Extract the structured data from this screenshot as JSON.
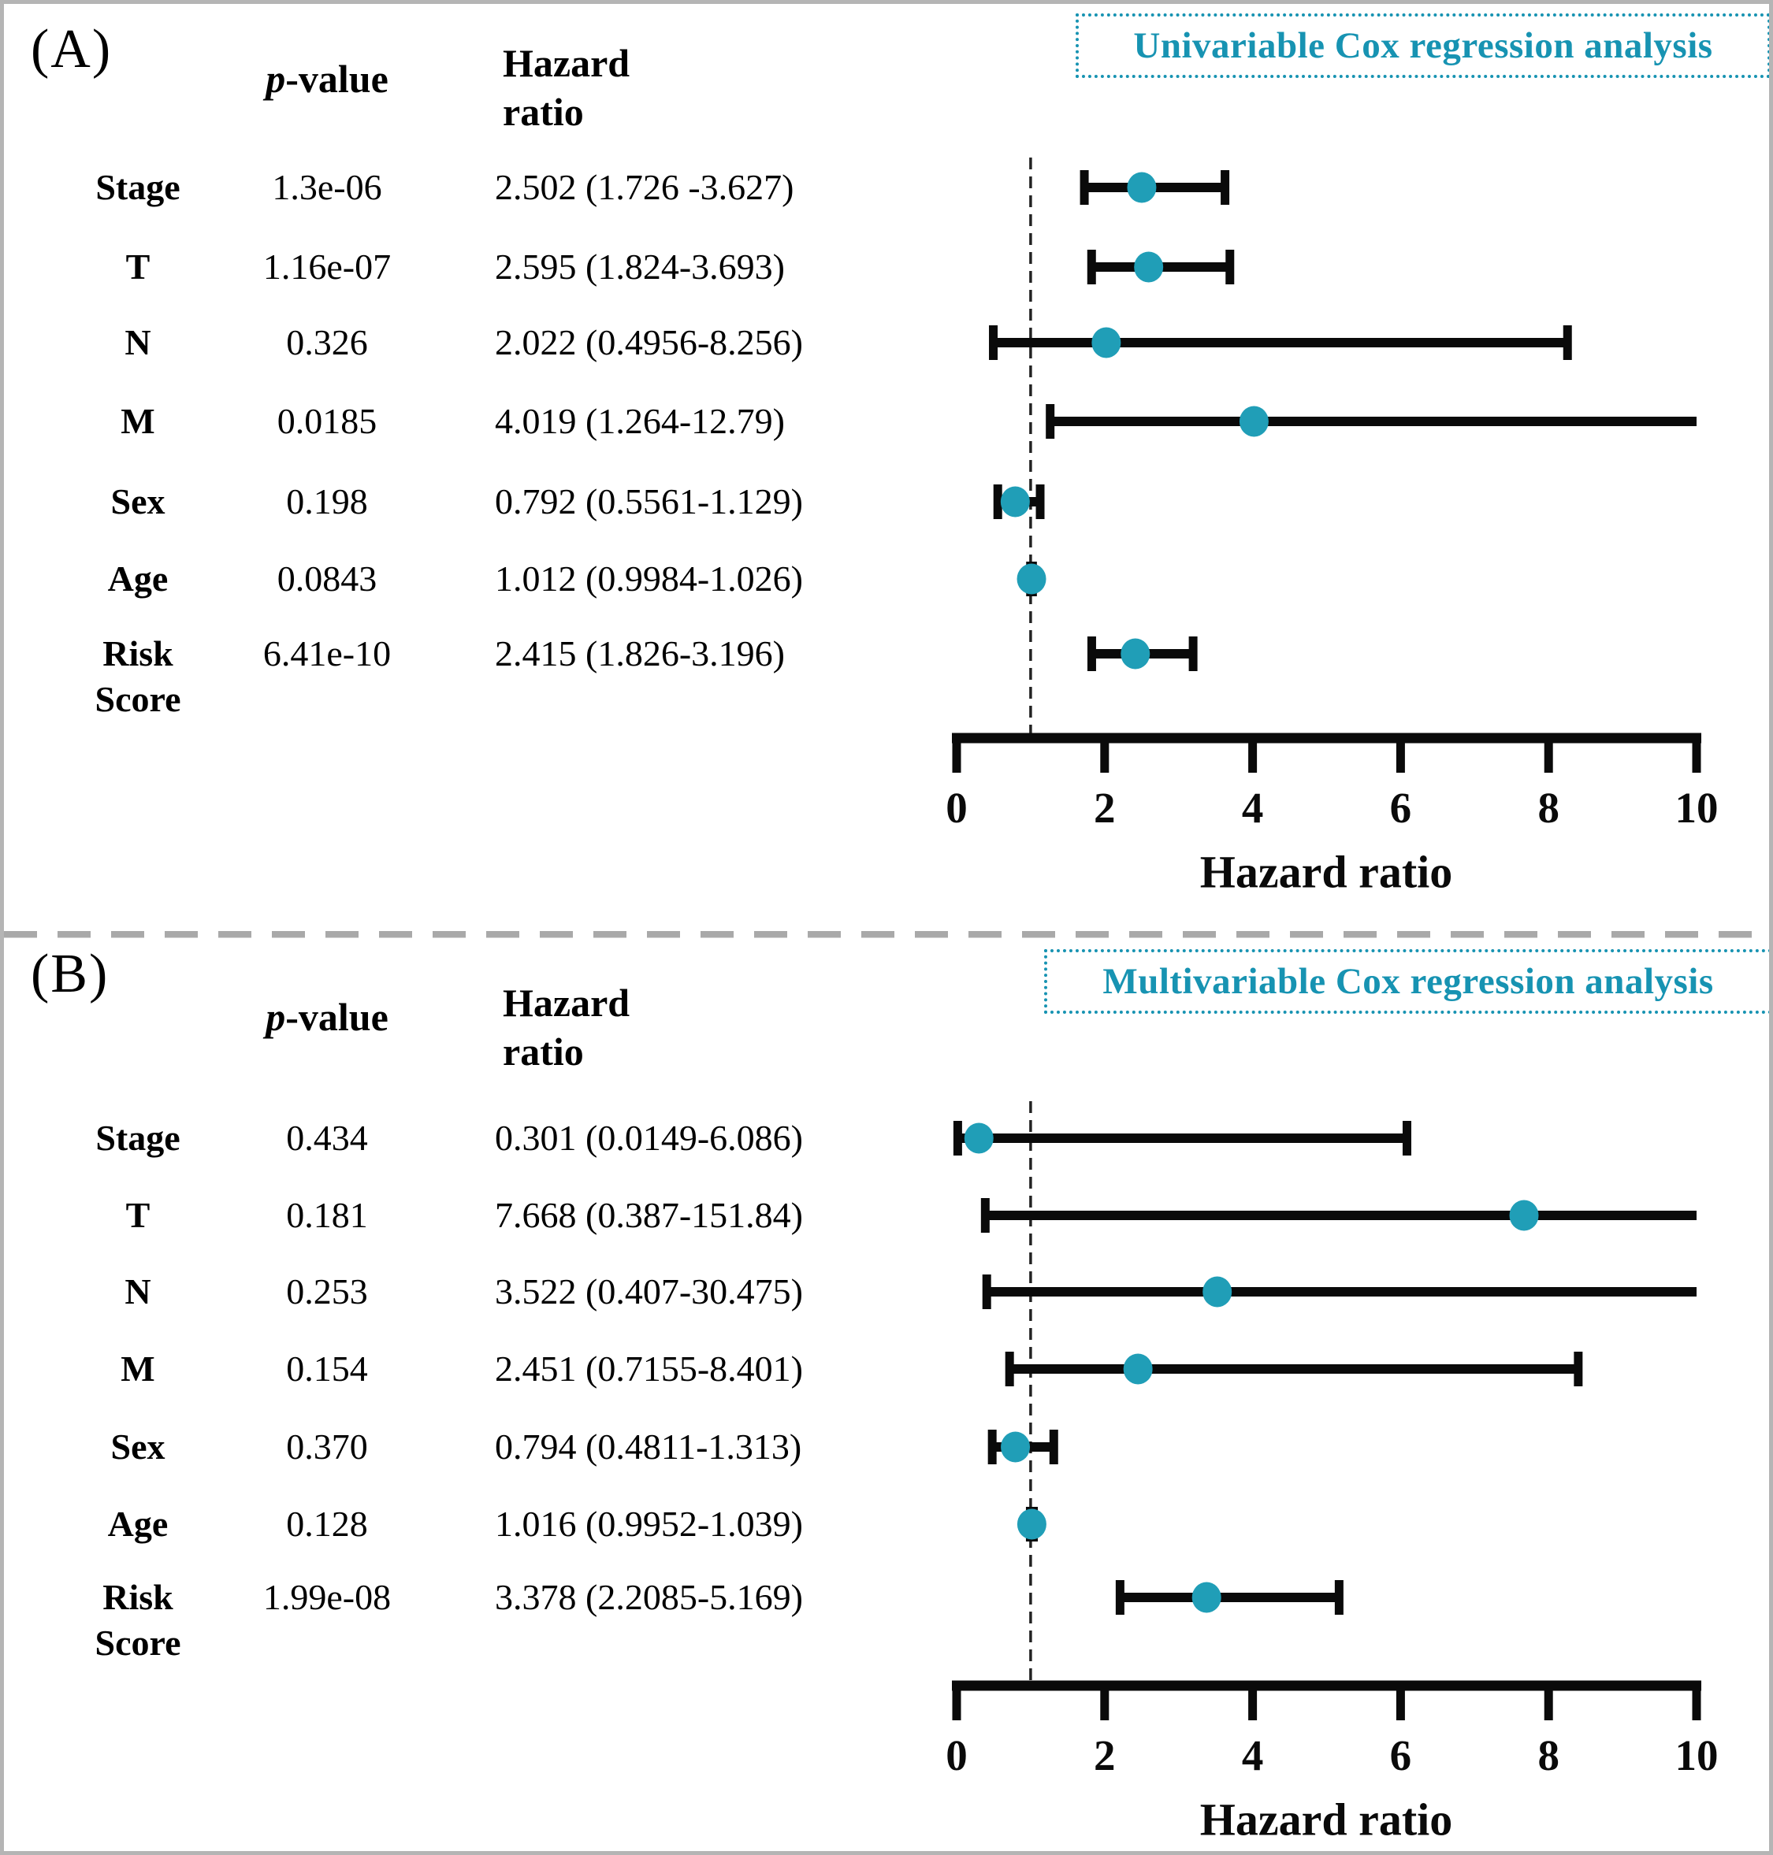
{
  "figure": {
    "background": "#ffffff",
    "border_color": "#b5b5b5",
    "divider_color": "#a9a9a9"
  },
  "colors": {
    "title_teal": "#1793b2",
    "dot_teal": "#209eb7",
    "bar_black": "#0a0a0a",
    "ref_line_dark": "#222222",
    "text_black": "#000000"
  },
  "chart_data": [
    {
      "type": "scatter",
      "subtype": "forest-plot",
      "panel_label": "(A)",
      "title": "Univariable Cox regression analysis",
      "col_p_italic": "p",
      "col_p_rest": "-value",
      "col_hr_lines": [
        "Hazard",
        "ratio"
      ],
      "xlabel": "Hazard ratio",
      "xlim": [
        0,
        10
      ],
      "xticks": [
        0,
        2,
        4,
        6,
        8,
        10
      ],
      "reference_line_x": 1,
      "legend_position": "none",
      "grid": false,
      "rows": [
        {
          "variable": "Stage",
          "p_value": "1.3e-06",
          "hr_label": "2.502 (1.726 -3.627)",
          "hr": 2.502,
          "ci_low": 1.726,
          "ci_high": 3.627
        },
        {
          "variable": "T",
          "p_value": "1.16e-07",
          "hr_label": "2.595 (1.824-3.693)",
          "hr": 2.595,
          "ci_low": 1.824,
          "ci_high": 3.693
        },
        {
          "variable": "N",
          "p_value": "0.326",
          "hr_label": "2.022 (0.4956-8.256)",
          "hr": 2.022,
          "ci_low": 0.4956,
          "ci_high": 8.256
        },
        {
          "variable": "M",
          "p_value": "0.0185",
          "hr_label": "4.019 (1.264-12.79)",
          "hr": 4.019,
          "ci_low": 1.264,
          "ci_high": 12.79
        },
        {
          "variable": "Sex",
          "p_value": "0.198",
          "hr_label": "0.792 (0.5561-1.129)",
          "hr": 0.792,
          "ci_low": 0.5561,
          "ci_high": 1.129
        },
        {
          "variable": "Age",
          "p_value": "0.0843",
          "hr_label": "1.012 (0.9984-1.026)",
          "hr": 1.012,
          "ci_low": 0.9984,
          "ci_high": 1.026
        },
        {
          "variable": "Risk Score",
          "p_value": "6.41e-10",
          "hr_label": "2.415 (1.826-3.196)",
          "hr": 2.415,
          "ci_low": 1.826,
          "ci_high": 3.196
        }
      ]
    },
    {
      "type": "scatter",
      "subtype": "forest-plot",
      "panel_label": "(B)",
      "title": "Multivariable Cox regression analysis",
      "col_p_italic": "p",
      "col_p_rest": "-value",
      "col_hr_lines": [
        "Hazard",
        "ratio"
      ],
      "xlabel": "Hazard ratio",
      "xlim": [
        0,
        10
      ],
      "xticks": [
        0,
        2,
        4,
        6,
        8,
        10
      ],
      "reference_line_x": 1,
      "legend_position": "none",
      "grid": false,
      "rows": [
        {
          "variable": "Stage",
          "p_value": "0.434",
          "hr_label": "0.301 (0.0149-6.086)",
          "hr": 0.301,
          "ci_low": 0.0149,
          "ci_high": 6.086
        },
        {
          "variable": "T",
          "p_value": "0.181",
          "hr_label": "7.668 (0.387-151.84)",
          "hr": 7.668,
          "ci_low": 0.387,
          "ci_high": 151.84
        },
        {
          "variable": "N",
          "p_value": "0.253",
          "hr_label": "3.522 (0.407-30.475)",
          "hr": 3.522,
          "ci_low": 0.407,
          "ci_high": 30.475
        },
        {
          "variable": "M",
          "p_value": "0.154",
          "hr_label": "2.451 (0.7155-8.401)",
          "hr": 2.451,
          "ci_low": 0.7155,
          "ci_high": 8.401
        },
        {
          "variable": "Sex",
          "p_value": "0.370",
          "hr_label": "0.794 (0.4811-1.313)",
          "hr": 0.794,
          "ci_low": 0.4811,
          "ci_high": 1.313
        },
        {
          "variable": "Age",
          "p_value": "0.128",
          "hr_label": "1.016 (0.9952-1.039)",
          "hr": 1.016,
          "ci_low": 0.9952,
          "ci_high": 1.039
        },
        {
          "variable": "Risk Score",
          "p_value": "1.99e-08",
          "hr_label": "3.378 (2.2085-5.169)",
          "hr": 3.378,
          "ci_low": 2.2085,
          "ci_high": 5.169
        }
      ]
    }
  ]
}
